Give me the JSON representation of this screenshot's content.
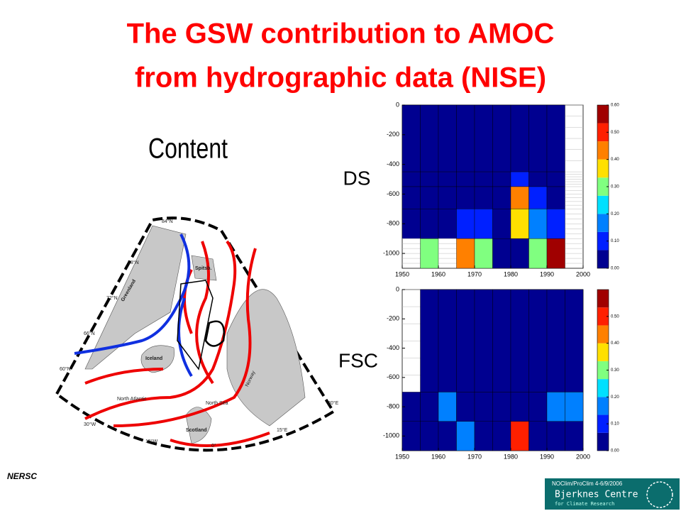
{
  "slide": {
    "title_lines": [
      "The GSW contribution to AMOC",
      "from hydrographic data (NISE)"
    ],
    "subtitle": "Content",
    "panel_labels": [
      "DS",
      "FSC"
    ],
    "map_labels": [
      "84°N",
      "78°N",
      "72°N",
      "66°N",
      "60°N",
      "30°W",
      "15°W",
      "0°",
      "15°E",
      "30°E",
      "Greenland",
      "Iceland",
      "Spitsb.",
      "Scotland",
      "North Atlantic",
      "Norway",
      "North Sea"
    ],
    "logo_left": "NERSC",
    "footer_note": "NOClim/ProClim 4-6/9/2006",
    "logo_right": [
      "Bjerknes Centre",
      "for Climate Research"
    ]
  },
  "chart_data": [
    {
      "type": "heatmap",
      "name": "DS",
      "xbins": [
        1950,
        1955,
        1960,
        1965,
        1970,
        1975,
        1980,
        1985,
        1990,
        1995,
        2000
      ],
      "ybins": [
        0,
        -450,
        -550,
        -700,
        -900,
        -1100
      ],
      "values": [
        [
          0.03,
          0.03,
          0.03,
          0.03,
          0.03,
          0.03,
          0.03,
          0.03,
          0.03,
          null
        ],
        [
          0.03,
          0.03,
          0.03,
          0.03,
          0.03,
          0.03,
          0.12,
          0.03,
          0.03,
          null
        ],
        [
          0.03,
          0.03,
          0.03,
          0.03,
          0.03,
          0.03,
          0.43,
          0.12,
          0.03,
          null
        ],
        [
          0.03,
          0.03,
          0.03,
          0.12,
          0.12,
          0.03,
          0.38,
          0.15,
          0.12,
          null
        ],
        [
          null,
          0.3,
          null,
          0.42,
          0.3,
          0.03,
          0.03,
          0.3,
          0.58,
          null
        ]
      ],
      "xlim": [
        1950,
        2000
      ],
      "ylim": [
        -1100,
        0
      ],
      "xticks": [
        1950,
        1960,
        1970,
        1980,
        1990,
        2000
      ],
      "yticks": [
        0,
        -200,
        -400,
        -600,
        -800,
        -1000
      ],
      "clim": [
        0,
        0.6
      ],
      "colors": [
        "#000090",
        "#0020ff",
        "#0080ff",
        "#00e0ff",
        "#80ff80",
        "#ffe000",
        "#ff8000",
        "#ff2000",
        "#a00000"
      ],
      "cticks": [
        {
          "value": 0,
          "label": "0.00"
        },
        {
          "value": 0.1,
          "label": "0.10"
        },
        {
          "value": 0.2,
          "label": "0.20"
        },
        {
          "value": 0.3,
          "label": "0.30"
        },
        {
          "value": 0.4,
          "label": "0.40"
        },
        {
          "value": 0.5,
          "label": "0.50"
        },
        {
          "value": 0.6,
          "label": "0.60"
        }
      ]
    },
    {
      "type": "heatmap",
      "name": "FSC",
      "xbins": [
        1950,
        1955,
        1960,
        1965,
        1970,
        1975,
        1980,
        1985,
        1990,
        1995,
        2000
      ],
      "ybins": [
        0,
        -700,
        -900,
        -1100
      ],
      "values": [
        [
          null,
          0.03,
          0.03,
          0.03,
          0.03,
          0.03,
          0.03,
          0.03,
          0.03,
          0.03
        ],
        [
          0.03,
          0.03,
          0.17,
          0.03,
          0.03,
          0.03,
          0.03,
          0.03,
          0.17,
          0.17
        ],
        [
          0.03,
          0.03,
          0.03,
          0.15,
          0.03,
          0.03,
          0.5,
          0.03,
          0.03,
          0.03
        ]
      ],
      "xlim": [
        1950,
        2000
      ],
      "ylim": [
        -1100,
        0
      ],
      "xticks": [
        1950,
        1960,
        1970,
        1980,
        1990,
        2000
      ],
      "yticks": [
        0,
        -200,
        -400,
        -600,
        -800,
        -1000
      ],
      "clim": [
        0,
        0.6
      ],
      "colors": [
        "#000090",
        "#0020ff",
        "#0080ff",
        "#00e0ff",
        "#80ff80",
        "#ffe000",
        "#ff8000",
        "#ff2000",
        "#a00000"
      ],
      "cticks": [
        {
          "value": 0,
          "label": "0.00"
        },
        {
          "value": 0.1,
          "label": "0.10"
        },
        {
          "value": 0.2,
          "label": "0.20"
        },
        {
          "value": 0.3,
          "label": "0.30"
        },
        {
          "value": 0.4,
          "label": "0.40"
        },
        {
          "value": 0.5,
          "label": "0.50"
        }
      ]
    }
  ]
}
